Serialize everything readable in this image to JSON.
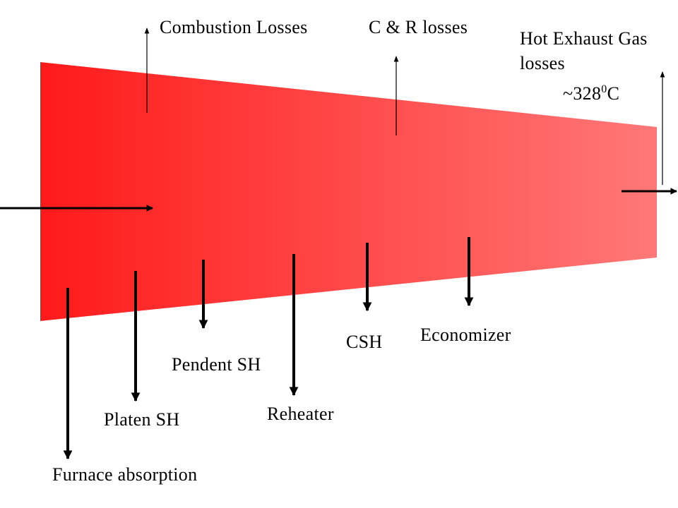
{
  "diagram": {
    "gradient": {
      "start_color": "#ff1a1a",
      "end_color": "#ff7878"
    },
    "arrow_color": "#000000",
    "labels": {
      "combustion_losses": "Combustion  Losses",
      "cr_losses": "C & R losses",
      "hot_exhaust_line1": "Hot Exhaust  Gas",
      "hot_exhaust_line2": "losses",
      "exhaust_temp_value": "~328",
      "exhaust_temp_sup": "0",
      "exhaust_temp_unit": "C",
      "economizer": "Economizer",
      "csh": "CSH",
      "pendent_sh": "Pendent SH",
      "reheater": "Reheater",
      "platen_sh": "Platen SH",
      "furnace_absorption": "Furnace absorption"
    }
  }
}
